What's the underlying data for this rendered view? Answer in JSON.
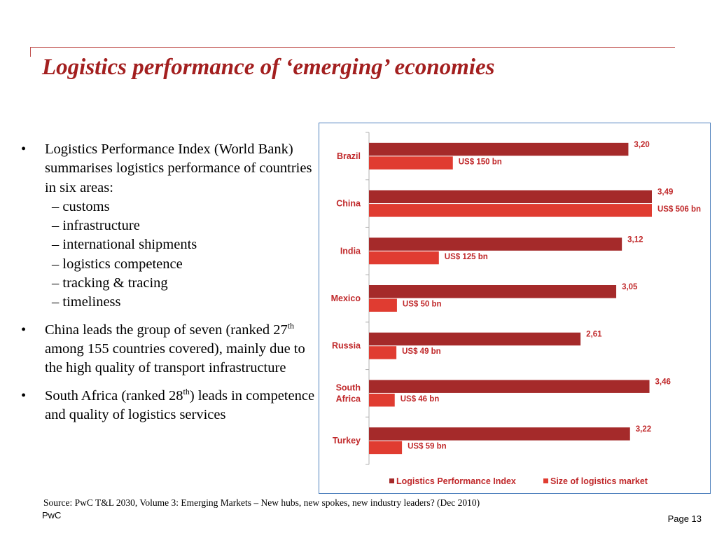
{
  "slide": {
    "title": "Logistics performance of ‘emerging’ economies",
    "source": "Source: PwC  T&L 2030, Volume 3: Emerging Markets – New hubs, new spokes, new industry leaders? (Dec 2010)",
    "footer_left": "PwC",
    "footer_right": "Page 13"
  },
  "bullets": {
    "b1_lead": "Logistics Performance Index (World Bank) summarises logistics performance of countries in six areas:",
    "b1_items": [
      "– customs",
      "– infrastructure",
      "– international shipments",
      "– logistics competence",
      "– tracking & tracing",
      "– timeliness"
    ],
    "b2_pre": "China leads the group of seven (ranked 27",
    "b2_sup": "th",
    "b2_post": " among 155 countries covered), mainly due to the high quality of transport infrastructure",
    "b3_pre": "South Africa (ranked 28",
    "b3_sup": "th",
    "b3_post": ") leads in competence and quality of logistics services",
    "bullet_char": "•"
  },
  "chart_data": {
    "type": "bar",
    "orientation": "horizontal",
    "categories": [
      "Brazil",
      "China",
      "India",
      "Mexico",
      "Russia",
      "South Africa",
      "Turkey"
    ],
    "series": [
      {
        "name": "Logistics Performance Index",
        "color": "#a52a2a",
        "values": [
          3.2,
          3.49,
          3.12,
          3.05,
          2.61,
          3.46,
          3.22
        ],
        "labels": [
          "3,20",
          "3,49",
          "3,12",
          "3,05",
          "2,61",
          "3,46",
          "3,22"
        ]
      },
      {
        "name": "Size of logistics market",
        "color": "#e03c31",
        "values": [
          150,
          506,
          125,
          50,
          49,
          46,
          59
        ],
        "labels": [
          "US$ 150 bn",
          "US$ 506 bn",
          "US$ 125 bn",
          "US$ 50 bn",
          "US$ 49 bn",
          "US$ 46 bn",
          "US$ 59 bn"
        ]
      }
    ],
    "legend_position": "bottom",
    "label_color": "#c0282a"
  }
}
